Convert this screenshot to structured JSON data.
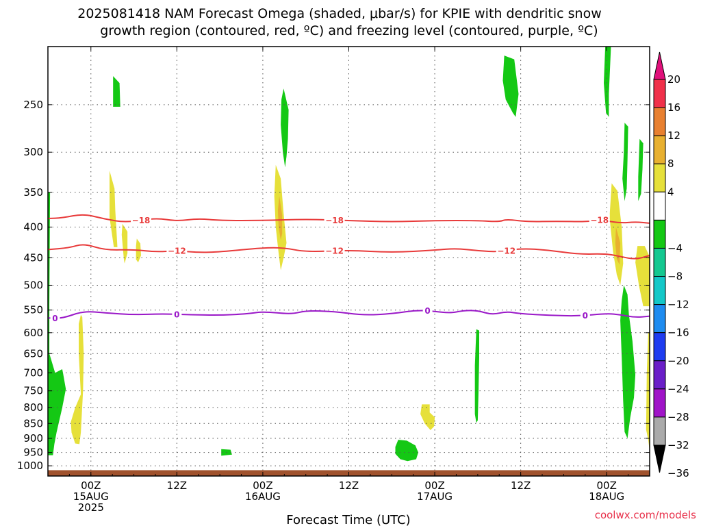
{
  "chart_data": {
    "type": "contour",
    "title_lines": [
      "2025081418 NAM Forecast Omega (shaded, μbar/s) for KPIE with dendritic snow",
      "growth region (contoured, red, ºC) and freezing level (contoured, purple, ºC)"
    ],
    "xlabel": "Forecast Time (UTC)",
    "ylabel": "",
    "x_range_hours": [
      -6,
      78
    ],
    "x_ticks": [
      {
        "hour": 0,
        "lines": [
          "00Z",
          "15AUG",
          "2025"
        ]
      },
      {
        "hour": 12,
        "lines": [
          "12Z"
        ]
      },
      {
        "hour": 24,
        "lines": [
          "00Z",
          "16AUG"
        ]
      },
      {
        "hour": 36,
        "lines": [
          "12Z"
        ]
      },
      {
        "hour": 48,
        "lines": [
          "00Z",
          "17AUG"
        ]
      },
      {
        "hour": 60,
        "lines": [
          "12Z"
        ]
      },
      {
        "hour": 72,
        "lines": [
          "00Z",
          "18AUG"
        ]
      }
    ],
    "y_scale": "log-pressure, inverted",
    "y_range_hpa": [
      1040,
      200
    ],
    "y_ticks": [
      250,
      300,
      350,
      400,
      450,
      500,
      550,
      600,
      650,
      700,
      750,
      800,
      850,
      900,
      950,
      1000
    ],
    "grid": "dotted",
    "ground_color": "#a0522d",
    "colorbar": {
      "ticks": [
        "20",
        "16",
        "12",
        "8",
        "4",
        "−4",
        "−8",
        "−12",
        "−16",
        "−20",
        "−24",
        "−28",
        "−32",
        "−36"
      ],
      "bins": [
        {
          "from": 16,
          "to": 20,
          "color": "#f0304a"
        },
        {
          "from": 12,
          "to": 16,
          "color": "#e88030"
        },
        {
          "from": 8,
          "to": 12,
          "color": "#e8b030"
        },
        {
          "from": 4,
          "to": 8,
          "color": "#e6e03a"
        },
        {
          "from": -4,
          "to": 4,
          "color": "#ffffff"
        },
        {
          "from": -8,
          "to": -4,
          "color": "#14c814"
        },
        {
          "from": -12,
          "to": -8,
          "color": "#14c890"
        },
        {
          "from": -16,
          "to": -12,
          "color": "#14c8c8"
        },
        {
          "from": -20,
          "to": -16,
          "color": "#1e8cf0"
        },
        {
          "from": -24,
          "to": -20,
          "color": "#1e3cf0"
        },
        {
          "from": -28,
          "to": -24,
          "color": "#6a1ec8"
        },
        {
          "from": -32,
          "to": -28,
          "color": "#a014c8"
        },
        {
          "from": -36,
          "to": -32,
          "color": "#aaaaaa"
        }
      ],
      "top_arrow_color": "#e0107a",
      "bottom_arrow_color": "#000000"
    },
    "contour_lines": [
      {
        "label": "−18",
        "color": "#e83a3a",
        "label_hours": [
          7,
          34,
          71
        ],
        "points": [
          [
            -6,
            387
          ],
          [
            -4,
            386
          ],
          [
            -1,
            380
          ],
          [
            2,
            388
          ],
          [
            5,
            393
          ],
          [
            9,
            386
          ],
          [
            12,
            391
          ],
          [
            15,
            387
          ],
          [
            18,
            390
          ],
          [
            24,
            390
          ],
          [
            30,
            388
          ],
          [
            36,
            390
          ],
          [
            42,
            392
          ],
          [
            48,
            390
          ],
          [
            54,
            390
          ],
          [
            57,
            392
          ],
          [
            58,
            388
          ],
          [
            61,
            392
          ],
          [
            65,
            391
          ],
          [
            69,
            392
          ],
          [
            71,
            389
          ],
          [
            74,
            394
          ],
          [
            76,
            392
          ],
          [
            78,
            394
          ]
        ]
      },
      {
        "label": "−12",
        "color": "#e83a3a",
        "label_hours": [
          12,
          34,
          58
        ],
        "points": [
          [
            -6,
            436
          ],
          [
            -3,
            433
          ],
          [
            -1,
            426
          ],
          [
            2,
            437
          ],
          [
            6,
            436
          ],
          [
            9,
            440
          ],
          [
            12,
            438
          ],
          [
            15,
            441
          ],
          [
            18,
            440
          ],
          [
            24,
            433
          ],
          [
            27,
            433
          ],
          [
            30,
            440
          ],
          [
            36,
            437
          ],
          [
            42,
            441
          ],
          [
            48,
            437
          ],
          [
            51,
            434
          ],
          [
            54,
            438
          ],
          [
            57,
            440
          ],
          [
            60,
            434
          ],
          [
            64,
            437
          ],
          [
            68,
            444
          ],
          [
            72,
            443
          ],
          [
            74,
            448
          ],
          [
            76,
            453
          ],
          [
            78,
            446
          ]
        ]
      },
      {
        "label": "0",
        "color": "#9a18c8",
        "label_hours": [
          -5,
          12,
          47,
          69
        ],
        "points": [
          [
            -6,
            567
          ],
          [
            -4,
            568
          ],
          [
            -1,
            552
          ],
          [
            2,
            556
          ],
          [
            6,
            560
          ],
          [
            10,
            558
          ],
          [
            14,
            560
          ],
          [
            18,
            561
          ],
          [
            22,
            558
          ],
          [
            24,
            553
          ],
          [
            28,
            559
          ],
          [
            30,
            551
          ],
          [
            34,
            553
          ],
          [
            38,
            561
          ],
          [
            42,
            558
          ],
          [
            46,
            549
          ],
          [
            50,
            557
          ],
          [
            52,
            551
          ],
          [
            54,
            551
          ],
          [
            56,
            560
          ],
          [
            58,
            553
          ],
          [
            60,
            558
          ],
          [
            64,
            561
          ],
          [
            68,
            563
          ],
          [
            72,
            557
          ],
          [
            74,
            560
          ],
          [
            76,
            566
          ],
          [
            78,
            563
          ]
        ]
      }
    ],
    "omega_regions": [
      {
        "value": -6,
        "points": [
          [
            3.1,
            224
          ],
          [
            4.0,
            230
          ],
          [
            4.1,
            252
          ],
          [
            3.1,
            252
          ]
        ]
      },
      {
        "value": 6,
        "points": [
          [
            2.6,
            322
          ],
          [
            3.3,
            345
          ],
          [
            3.4,
            375
          ],
          [
            3.7,
            432
          ],
          [
            3.2,
            432
          ],
          [
            2.6,
            385
          ]
        ]
      },
      {
        "value": 6,
        "points": [
          [
            4.4,
            395
          ],
          [
            5.1,
            407
          ],
          [
            5.1,
            442
          ],
          [
            4.7,
            460
          ],
          [
            4.6,
            452
          ],
          [
            4.3,
            412
          ]
        ]
      },
      {
        "value": 6,
        "points": [
          [
            6.4,
            418
          ],
          [
            6.9,
            426
          ],
          [
            7.0,
            446
          ],
          [
            6.6,
            458
          ],
          [
            6.3,
            453
          ],
          [
            6.3,
            430
          ]
        ]
      },
      {
        "value": 6,
        "points": [
          [
            -1.4,
            560
          ],
          [
            -1.2,
            565
          ],
          [
            -1.0,
            650
          ],
          [
            -1.1,
            750
          ],
          [
            -1.4,
            880
          ],
          [
            -1.6,
            920
          ],
          [
            -2.2,
            918
          ],
          [
            -2.7,
            880
          ],
          [
            -2.8,
            845
          ],
          [
            -2.2,
            800
          ],
          [
            -1.4,
            760
          ],
          [
            -1.7,
            650
          ],
          [
            -1.7,
            580
          ]
        ]
      },
      {
        "value": -6,
        "points": [
          [
            -6,
            350
          ],
          [
            -5.7,
            350
          ],
          [
            -5.8,
            540
          ],
          [
            -5.8,
            650
          ],
          [
            -5.0,
            700
          ],
          [
            -4.0,
            690
          ],
          [
            -3.9,
            700
          ],
          [
            -3.5,
            745
          ],
          [
            -4.0,
            800
          ],
          [
            -4.8,
            880
          ],
          [
            -5.1,
            920
          ],
          [
            -5.3,
            960
          ],
          [
            -6,
            960
          ]
        ]
      },
      {
        "value": -6,
        "points": [
          [
            18.2,
            938
          ],
          [
            19.5,
            940
          ],
          [
            19.7,
            958
          ],
          [
            18.2,
            962
          ]
        ]
      },
      {
        "value": -6,
        "points": [
          [
            26.9,
            235
          ],
          [
            27.6,
            255
          ],
          [
            27.5,
            285
          ],
          [
            27.3,
            305
          ],
          [
            27.1,
            318
          ],
          [
            26.8,
            300
          ],
          [
            26.5,
            270
          ],
          [
            26.6,
            245
          ]
        ]
      },
      {
        "value": 6,
        "points": [
          [
            25.8,
            315
          ],
          [
            26.5,
            332
          ],
          [
            26.9,
            380
          ],
          [
            27.3,
            425
          ],
          [
            26.9,
            450
          ],
          [
            26.5,
            472
          ],
          [
            26.2,
            442
          ],
          [
            25.8,
            400
          ],
          [
            25.6,
            355
          ]
        ]
      },
      {
        "value": 10,
        "points": [
          [
            26.3,
            355
          ],
          [
            26.7,
            382
          ],
          [
            26.7,
            410
          ],
          [
            26.5,
            420
          ],
          [
            26.2,
            400
          ],
          [
            26.1,
            375
          ]
        ]
      },
      {
        "value": -6,
        "points": [
          [
            42.9,
            905
          ],
          [
            44.1,
            908
          ],
          [
            45.3,
            925
          ],
          [
            45.7,
            950
          ],
          [
            45.4,
            975
          ],
          [
            44.2,
            982
          ],
          [
            43.2,
            975
          ],
          [
            42.5,
            955
          ],
          [
            42.5,
            930
          ]
        ]
      },
      {
        "value": 6,
        "points": [
          [
            46.2,
            790
          ],
          [
            47.3,
            790
          ],
          [
            47.3,
            815
          ],
          [
            48.0,
            830
          ],
          [
            47.9,
            860
          ],
          [
            47.4,
            872
          ],
          [
            46.6,
            850
          ],
          [
            46.0,
            820
          ]
        ]
      },
      {
        "value": -6,
        "points": [
          [
            53.8,
            592
          ],
          [
            54.2,
            595
          ],
          [
            54.2,
            660
          ],
          [
            54.1,
            760
          ],
          [
            54.0,
            840
          ],
          [
            53.8,
            848
          ],
          [
            53.6,
            820
          ],
          [
            53.6,
            680
          ]
        ]
      },
      {
        "value": -6,
        "points": [
          [
            57.7,
            207
          ],
          [
            59.1,
            210
          ],
          [
            59.7,
            240
          ],
          [
            59.3,
            262
          ],
          [
            58.9,
            258
          ],
          [
            57.9,
            245
          ],
          [
            57.5,
            228
          ]
        ]
      },
      {
        "value": -6,
        "points": [
          [
            71.8,
            200
          ],
          [
            72.6,
            200
          ],
          [
            72.3,
            240
          ],
          [
            72.3,
            262
          ],
          [
            71.9,
            258
          ],
          [
            71.6,
            230
          ]
        ]
      },
      {
        "value": -6,
        "points": [
          [
            74.5,
            268
          ],
          [
            75.0,
            272
          ],
          [
            74.9,
            310
          ],
          [
            74.8,
            345
          ],
          [
            74.5,
            362
          ],
          [
            74.2,
            332
          ],
          [
            74.4,
            300
          ]
        ]
      },
      {
        "value": -6,
        "points": [
          [
            76.6,
            285
          ],
          [
            77.1,
            290
          ],
          [
            77.0,
            320
          ],
          [
            76.8,
            352
          ],
          [
            76.4,
            362
          ],
          [
            76.4,
            330
          ]
        ]
      },
      {
        "value": 6,
        "points": [
          [
            72.7,
            338
          ],
          [
            73.5,
            348
          ],
          [
            74.1,
            400
          ],
          [
            74.3,
            460
          ],
          [
            73.9,
            500
          ],
          [
            73.4,
            480
          ],
          [
            72.9,
            440
          ],
          [
            72.4,
            385
          ]
        ]
      },
      {
        "value": 10,
        "points": [
          [
            73.3,
            400
          ],
          [
            73.9,
            425
          ],
          [
            73.8,
            462
          ],
          [
            73.4,
            452
          ],
          [
            73.2,
            425
          ]
        ]
      },
      {
        "value": 6,
        "points": [
          [
            76.3,
            430
          ],
          [
            77.3,
            430
          ],
          [
            78,
            448
          ],
          [
            78,
            542
          ],
          [
            77.1,
            542
          ],
          [
            76.5,
            500
          ],
          [
            76.0,
            458
          ]
        ]
      },
      {
        "value": -6,
        "points": [
          [
            74.4,
            500
          ],
          [
            74.9,
            518
          ],
          [
            75.1,
            560
          ],
          [
            75.6,
            620
          ],
          [
            76.0,
            705
          ],
          [
            75.8,
            770
          ],
          [
            75.3,
            830
          ],
          [
            74.9,
            900
          ],
          [
            74.5,
            878
          ],
          [
            74.3,
            780
          ],
          [
            74.1,
            660
          ],
          [
            73.9,
            572
          ],
          [
            74.1,
            530
          ]
        ]
      },
      {
        "value": 6,
        "points": [
          [
            77.8,
            600
          ],
          [
            78,
            600
          ],
          [
            78,
            945
          ],
          [
            77.8,
            905
          ],
          [
            77.5,
            870
          ],
          [
            77.6,
            700
          ]
        ]
      }
    ]
  },
  "watermark": "coolwx.com/models"
}
